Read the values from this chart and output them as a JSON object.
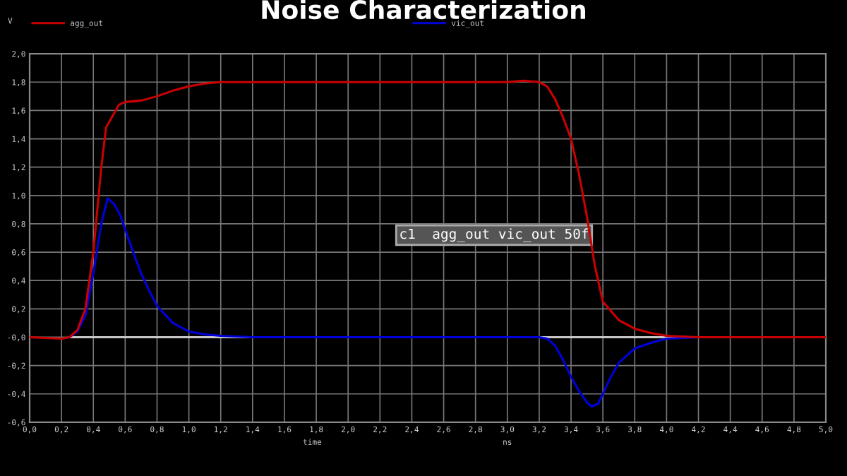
{
  "chart_data": {
    "type": "line",
    "title": "Noise Characterization",
    "xlabel": "time",
    "ylabel": "V",
    "annotations": [
      "ns",
      "c1  agg_out vic_out 50f"
    ],
    "xlim": [
      0,
      5
    ],
    "ylim": [
      -0.6,
      2.0
    ],
    "xticks": [
      {
        "value": 0,
        "label": "0,0"
      },
      {
        "value": 0.2,
        "label": "0,2"
      },
      {
        "value": 0.4,
        "label": "0,4"
      },
      {
        "value": 0.6,
        "label": "0,6"
      },
      {
        "value": 0.8,
        "label": "0,8"
      },
      {
        "value": 1.0,
        "label": "1,0"
      },
      {
        "value": 1.2,
        "label": "1,2"
      },
      {
        "value": 1.4,
        "label": "1,4"
      },
      {
        "value": 1.6,
        "label": "1,6"
      },
      {
        "value": 1.8,
        "label": "1,8"
      },
      {
        "value": 2.0,
        "label": "2,0"
      },
      {
        "value": 2.2,
        "label": "2,2"
      },
      {
        "value": 2.4,
        "label": "2,4"
      },
      {
        "value": 2.6,
        "label": "2,6"
      },
      {
        "value": 2.8,
        "label": "2,8"
      },
      {
        "value": 3.0,
        "label": "3,0"
      },
      {
        "value": 3.2,
        "label": "3,2"
      },
      {
        "value": 3.4,
        "label": "3,4"
      },
      {
        "value": 3.6,
        "label": "3,6"
      },
      {
        "value": 3.8,
        "label": "3,8"
      },
      {
        "value": 4.0,
        "label": "4,0"
      },
      {
        "value": 4.2,
        "label": "4,2"
      },
      {
        "value": 4.4,
        "label": "4,4"
      },
      {
        "value": 4.6,
        "label": "4,6"
      },
      {
        "value": 4.8,
        "label": "4,8"
      },
      {
        "value": 5.0,
        "label": "5,0"
      }
    ],
    "yticks": [
      {
        "value": -0.6,
        "label": "-0,6"
      },
      {
        "value": -0.4,
        "label": "-0,4"
      },
      {
        "value": -0.2,
        "label": "-0,2"
      },
      {
        "value": 0,
        "label": "-0,0"
      },
      {
        "value": 0.2,
        "label": "0,2"
      },
      {
        "value": 0.4,
        "label": "0,4"
      },
      {
        "value": 0.6,
        "label": "0,6"
      },
      {
        "value": 0.8,
        "label": "0,8"
      },
      {
        "value": 1.0,
        "label": "1,0"
      },
      {
        "value": 1.2,
        "label": "1,2"
      },
      {
        "value": 1.4,
        "label": "1,4"
      },
      {
        "value": 1.6,
        "label": "1,6"
      },
      {
        "value": 1.8,
        "label": "1,8"
      },
      {
        "value": 2.0,
        "label": "2,0"
      }
    ],
    "grid": true,
    "legend": "top",
    "line_style": "solid",
    "marker": "none",
    "series": [
      {
        "color": "#c8c8c8",
        "x": [
          0.25,
          1.4,
          2.3,
          3.2,
          4.2
        ],
        "values": [
          0,
          0,
          null,
          0,
          0
        ]
      },
      {
        "name": "vic_out",
        "color": "#0000dd",
        "x": [
          0.25,
          0.3,
          0.35,
          0.4,
          0.45,
          0.49,
          0.53,
          0.57,
          0.6,
          0.65,
          0.7,
          0.75,
          0.8,
          0.9,
          1.0,
          1.1,
          1.2,
          1.4,
          3.2,
          3.25,
          3.3,
          3.35,
          3.4,
          3.45,
          3.5,
          3.53,
          3.57,
          3.6,
          3.65,
          3.7,
          3.8,
          3.9,
          4.0,
          4.2,
          5.0
        ],
        "values": [
          0,
          0.04,
          0.15,
          0.45,
          0.8,
          0.98,
          0.94,
          0.86,
          0.76,
          0.6,
          0.45,
          0.33,
          0.22,
          0.1,
          0.04,
          0.02,
          0.01,
          0,
          0,
          -0.01,
          -0.06,
          -0.16,
          -0.28,
          -0.38,
          -0.46,
          -0.49,
          -0.47,
          -0.4,
          -0.28,
          -0.18,
          -0.08,
          -0.04,
          -0.01,
          0,
          0
        ]
      },
      {
        "name": "agg_out",
        "color": "#cc0000",
        "x": [
          0,
          0.2,
          0.25,
          0.3,
          0.35,
          0.4,
          0.45,
          0.48,
          0.52,
          0.56,
          0.6,
          0.7,
          0.8,
          0.9,
          1.0,
          1.1,
          1.2,
          3.0,
          3.1,
          3.2,
          3.25,
          3.3,
          3.35,
          3.4,
          3.45,
          3.5,
          3.55,
          3.6,
          3.7,
          3.8,
          3.9,
          4.0,
          4.2,
          5.0
        ],
        "values": [
          0,
          -0.01,
          0,
          0.05,
          0.2,
          0.6,
          1.2,
          1.48,
          1.56,
          1.64,
          1.66,
          1.67,
          1.7,
          1.74,
          1.77,
          1.79,
          1.8,
          1.8,
          1.81,
          1.8,
          1.77,
          1.68,
          1.55,
          1.4,
          1.15,
          0.85,
          0.5,
          0.25,
          0.12,
          0.06,
          0.03,
          0.01,
          0,
          0
        ]
      }
    ]
  }
}
